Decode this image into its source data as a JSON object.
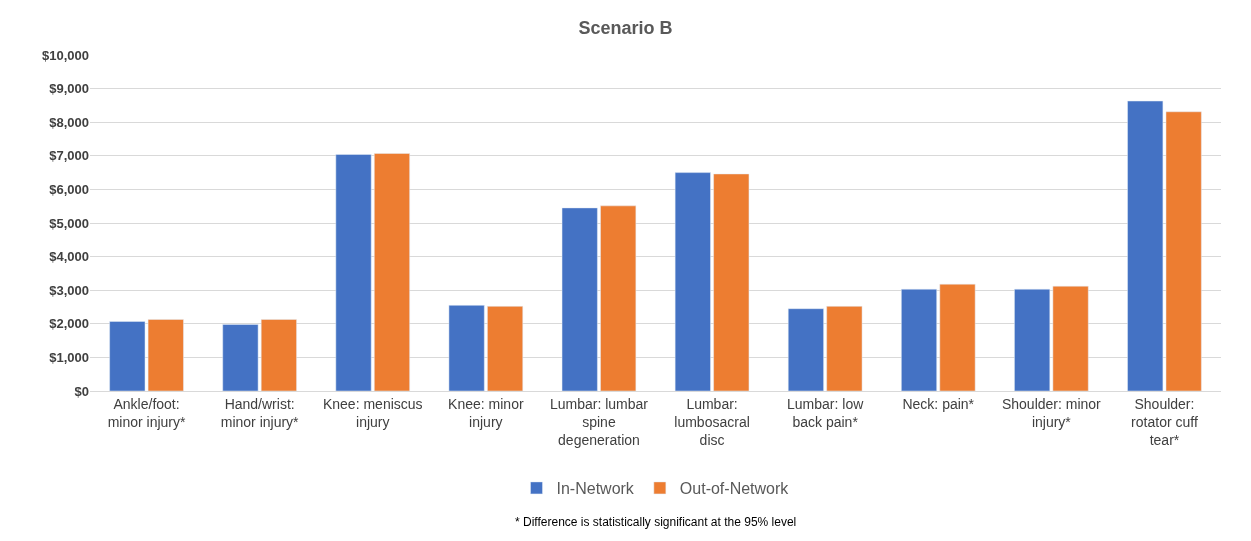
{
  "chart_data": {
    "type": "bar",
    "title": "Scenario B",
    "categories": [
      "Ankle/foot: minor injury*",
      "Hand/wrist: minor injury*",
      "Knee: meniscus injury",
      "Knee: minor injury",
      "Lumbar: lumbar spine degeneration",
      "Lumbar: lumbosacral disc",
      "Lumbar: low back pain*",
      "Neck: pain*",
      "Shoulder: minor injury*",
      "Shoulder: rotator cuff tear*"
    ],
    "series": [
      {
        "name": "In-Network",
        "color": "#4472c4",
        "values": [
          2070,
          1980,
          7040,
          2550,
          5450,
          6500,
          2450,
          3030,
          3030,
          8630
        ]
      },
      {
        "name": "Out-of-Network",
        "color": "#ed7d31",
        "values": [
          2130,
          2130,
          7070,
          2520,
          5510,
          6460,
          2520,
          3180,
          3120,
          8310
        ]
      }
    ],
    "ylim": [
      0,
      10000
    ],
    "yticks": [
      {
        "value": 0,
        "label": "$0"
      },
      {
        "value": 1000,
        "label": "$1,000"
      },
      {
        "value": 2000,
        "label": "$2,000"
      },
      {
        "value": 3000,
        "label": "$3,000"
      },
      {
        "value": 4000,
        "label": "$4,000"
      },
      {
        "value": 5000,
        "label": "$5,000"
      },
      {
        "value": 6000,
        "label": "$6,000"
      },
      {
        "value": 7000,
        "label": "$7,000"
      },
      {
        "value": 8000,
        "label": "$8,000"
      },
      {
        "value": 9000,
        "label": "$9,000"
      },
      {
        "value": 10000,
        "label": "$10,000"
      }
    ],
    "grid": "y",
    "legend": "bottom",
    "annotations": [
      "* Difference is statistically significant at the 95% level"
    ]
  }
}
